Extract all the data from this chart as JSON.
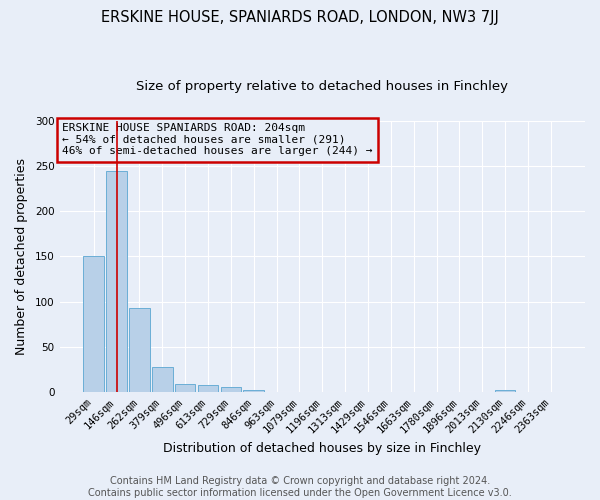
{
  "title": "ERSKINE HOUSE, SPANIARDS ROAD, LONDON, NW3 7JJ",
  "subtitle": "Size of property relative to detached houses in Finchley",
  "xlabel": "Distribution of detached houses by size in Finchley",
  "ylabel": "Number of detached properties",
  "categories": [
    "29sqm",
    "146sqm",
    "262sqm",
    "379sqm",
    "496sqm",
    "613sqm",
    "729sqm",
    "846sqm",
    "963sqm",
    "1079sqm",
    "1196sqm",
    "1313sqm",
    "1429sqm",
    "1546sqm",
    "1663sqm",
    "1780sqm",
    "1896sqm",
    "2013sqm",
    "2130sqm",
    "2246sqm",
    "2363sqm"
  ],
  "values": [
    150,
    244,
    93,
    28,
    9,
    8,
    6,
    2,
    0,
    0,
    0,
    0,
    0,
    0,
    0,
    0,
    0,
    0,
    2,
    0,
    0
  ],
  "bar_color": "#b8d0e8",
  "bar_edge_color": "#6aaed6",
  "vline_x": 1.0,
  "vline_color": "#cc0000",
  "annotation_text": "ERSKINE HOUSE SPANIARDS ROAD: 204sqm\n← 54% of detached houses are smaller (291)\n46% of semi-detached houses are larger (244) →",
  "annotation_box_color": "#cc0000",
  "ylim": [
    0,
    300
  ],
  "yticks": [
    0,
    50,
    100,
    150,
    200,
    250,
    300
  ],
  "footnote": "Contains HM Land Registry data © Crown copyright and database right 2024.\nContains public sector information licensed under the Open Government Licence v3.0.",
  "title_fontsize": 10.5,
  "subtitle_fontsize": 9.5,
  "label_fontsize": 9,
  "tick_fontsize": 7.5,
  "footnote_fontsize": 7,
  "bg_color": "#e8eef8",
  "grid_color": "#ffffff"
}
